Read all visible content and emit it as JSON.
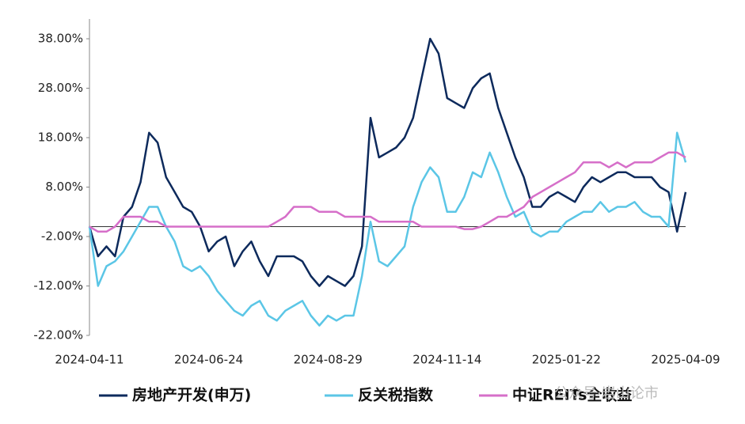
{
  "chart_data": {
    "type": "line",
    "categories": [
      "2024-04-11",
      null,
      null,
      null,
      null,
      null,
      null,
      null,
      null,
      null,
      null,
      null,
      null,
      null,
      "2024-06-24",
      null,
      null,
      null,
      null,
      null,
      null,
      null,
      null,
      null,
      null,
      null,
      null,
      null,
      "2024-08-29",
      null,
      null,
      null,
      null,
      null,
      null,
      null,
      null,
      null,
      null,
      null,
      null,
      null,
      "2024-11-14",
      null,
      null,
      null,
      null,
      null,
      null,
      null,
      null,
      null,
      null,
      null,
      null,
      null,
      "2025-01-22",
      null,
      null,
      null,
      null,
      null,
      null,
      null,
      null,
      null,
      null,
      null,
      null,
      null,
      "2025-04-09"
    ],
    "series": [
      {
        "name": "房地产开发(申万)",
        "color": "#0d2a5c",
        "values": [
          0,
          -6,
          -4,
          -6,
          2,
          4,
          9,
          19,
          17,
          10,
          7,
          4,
          3,
          0,
          -5,
          -3,
          -2,
          -8,
          -5,
          -3,
          -7,
          -10,
          -6,
          -6,
          -6,
          -7,
          -10,
          -12,
          -10,
          -11,
          -12,
          -10,
          -4,
          22,
          14,
          15,
          16,
          18,
          22,
          30,
          38,
          35,
          26,
          25,
          24,
          28,
          30,
          31,
          24,
          19,
          14,
          10,
          4,
          4,
          6,
          7,
          6,
          5,
          8,
          10,
          9,
          10,
          11,
          11,
          10,
          10,
          10,
          8,
          7,
          -1,
          7
        ]
      },
      {
        "name": "反关税指数",
        "color": "#5bc6e6",
        "values": [
          0,
          -12,
          -8,
          -7,
          -5,
          -2,
          1,
          4,
          4,
          0,
          -3,
          -8,
          -9,
          -8,
          -10,
          -13,
          -15,
          -17,
          -18,
          -16,
          -15,
          -18,
          -19,
          -17,
          -16,
          -15,
          -18,
          -20,
          -18,
          -19,
          -18,
          -18,
          -10,
          1,
          -7,
          -8,
          -6,
          -4,
          4,
          9,
          12,
          10,
          3,
          3,
          6,
          11,
          10,
          15,
          11,
          6,
          2,
          3,
          -1,
          -2,
          -1,
          -1,
          1,
          2,
          3,
          3,
          5,
          3,
          4,
          4,
          5,
          3,
          2,
          2,
          0,
          19,
          13
        ]
      },
      {
        "name": "中证REITs全收益",
        "color": "#d66fc9",
        "values": [
          0,
          -1,
          -1,
          0,
          2,
          2,
          2,
          1,
          1,
          0,
          0,
          0,
          0,
          0,
          0,
          0,
          0,
          0,
          0,
          0,
          0,
          0,
          1,
          2,
          4,
          4,
          4,
          3,
          3,
          3,
          2,
          2,
          2,
          2,
          1,
          1,
          1,
          1,
          1,
          0,
          0,
          0,
          0,
          0,
          -0.5,
          -0.5,
          0,
          1,
          2,
          2,
          3,
          4,
          6,
          7,
          8,
          9,
          10,
          11,
          13,
          13,
          13,
          12,
          13,
          12,
          13,
          13,
          13,
          14,
          15,
          15,
          14
        ]
      }
    ],
    "ylim": [
      -22,
      42
    ],
    "yticks": [
      {
        "value": -22,
        "label": "-22.00%"
      },
      {
        "value": -12,
        "label": "-12.00%"
      },
      {
        "value": -2,
        "label": "-2.00%"
      },
      {
        "value": 8,
        "label": "8.00%"
      },
      {
        "value": 18,
        "label": "18.00%"
      },
      {
        "value": 28,
        "label": "28.00%"
      },
      {
        "value": 38,
        "label": "38.00%"
      }
    ],
    "legend": "bottom",
    "watermark": "公众号·岩山论市"
  }
}
